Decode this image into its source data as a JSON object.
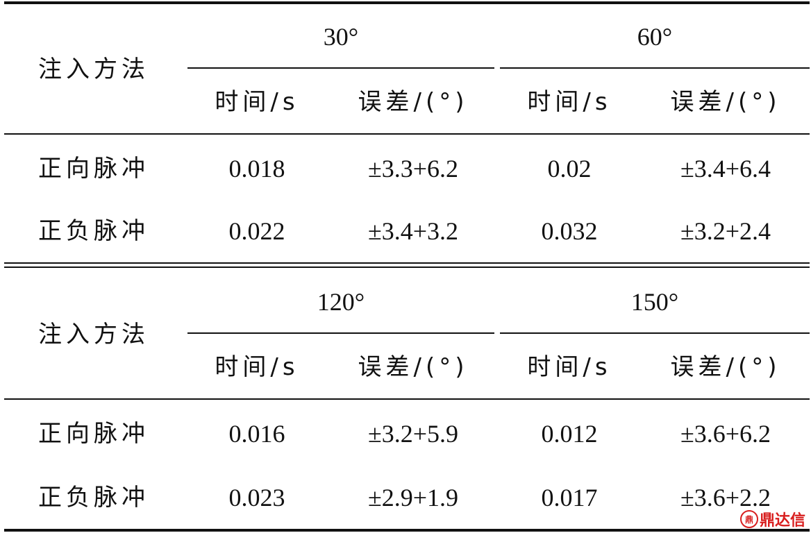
{
  "table": {
    "method_header": "注入方法",
    "time_header": "时间/s",
    "error_header": "误差/(°)",
    "blocks": [
      {
        "angles": [
          "30°",
          "60°"
        ],
        "rows": [
          {
            "method": "正向脉冲",
            "cells": [
              "0.018",
              "±3.3+6.2",
              "0.02",
              "±3.4+6.4"
            ]
          },
          {
            "method": "正负脉冲",
            "cells": [
              "0.022",
              "±3.4+3.2",
              "0.032",
              "±3.2+2.4"
            ]
          }
        ]
      },
      {
        "angles": [
          "120°",
          "150°"
        ],
        "rows": [
          {
            "method": "正向脉冲",
            "cells": [
              "0.016",
              "±3.2+5.9",
              "0.012",
              "±3.6+6.2"
            ]
          },
          {
            "method": "正负脉冲",
            "cells": [
              "0.023",
              "±2.9+1.9",
              "0.017",
              "±3.6+2.2"
            ]
          }
        ]
      }
    ]
  },
  "watermark": {
    "logo_text": "鼎",
    "text": "鼎达信"
  },
  "colors": {
    "text": "#111111",
    "watermark": "#d81e1e"
  }
}
